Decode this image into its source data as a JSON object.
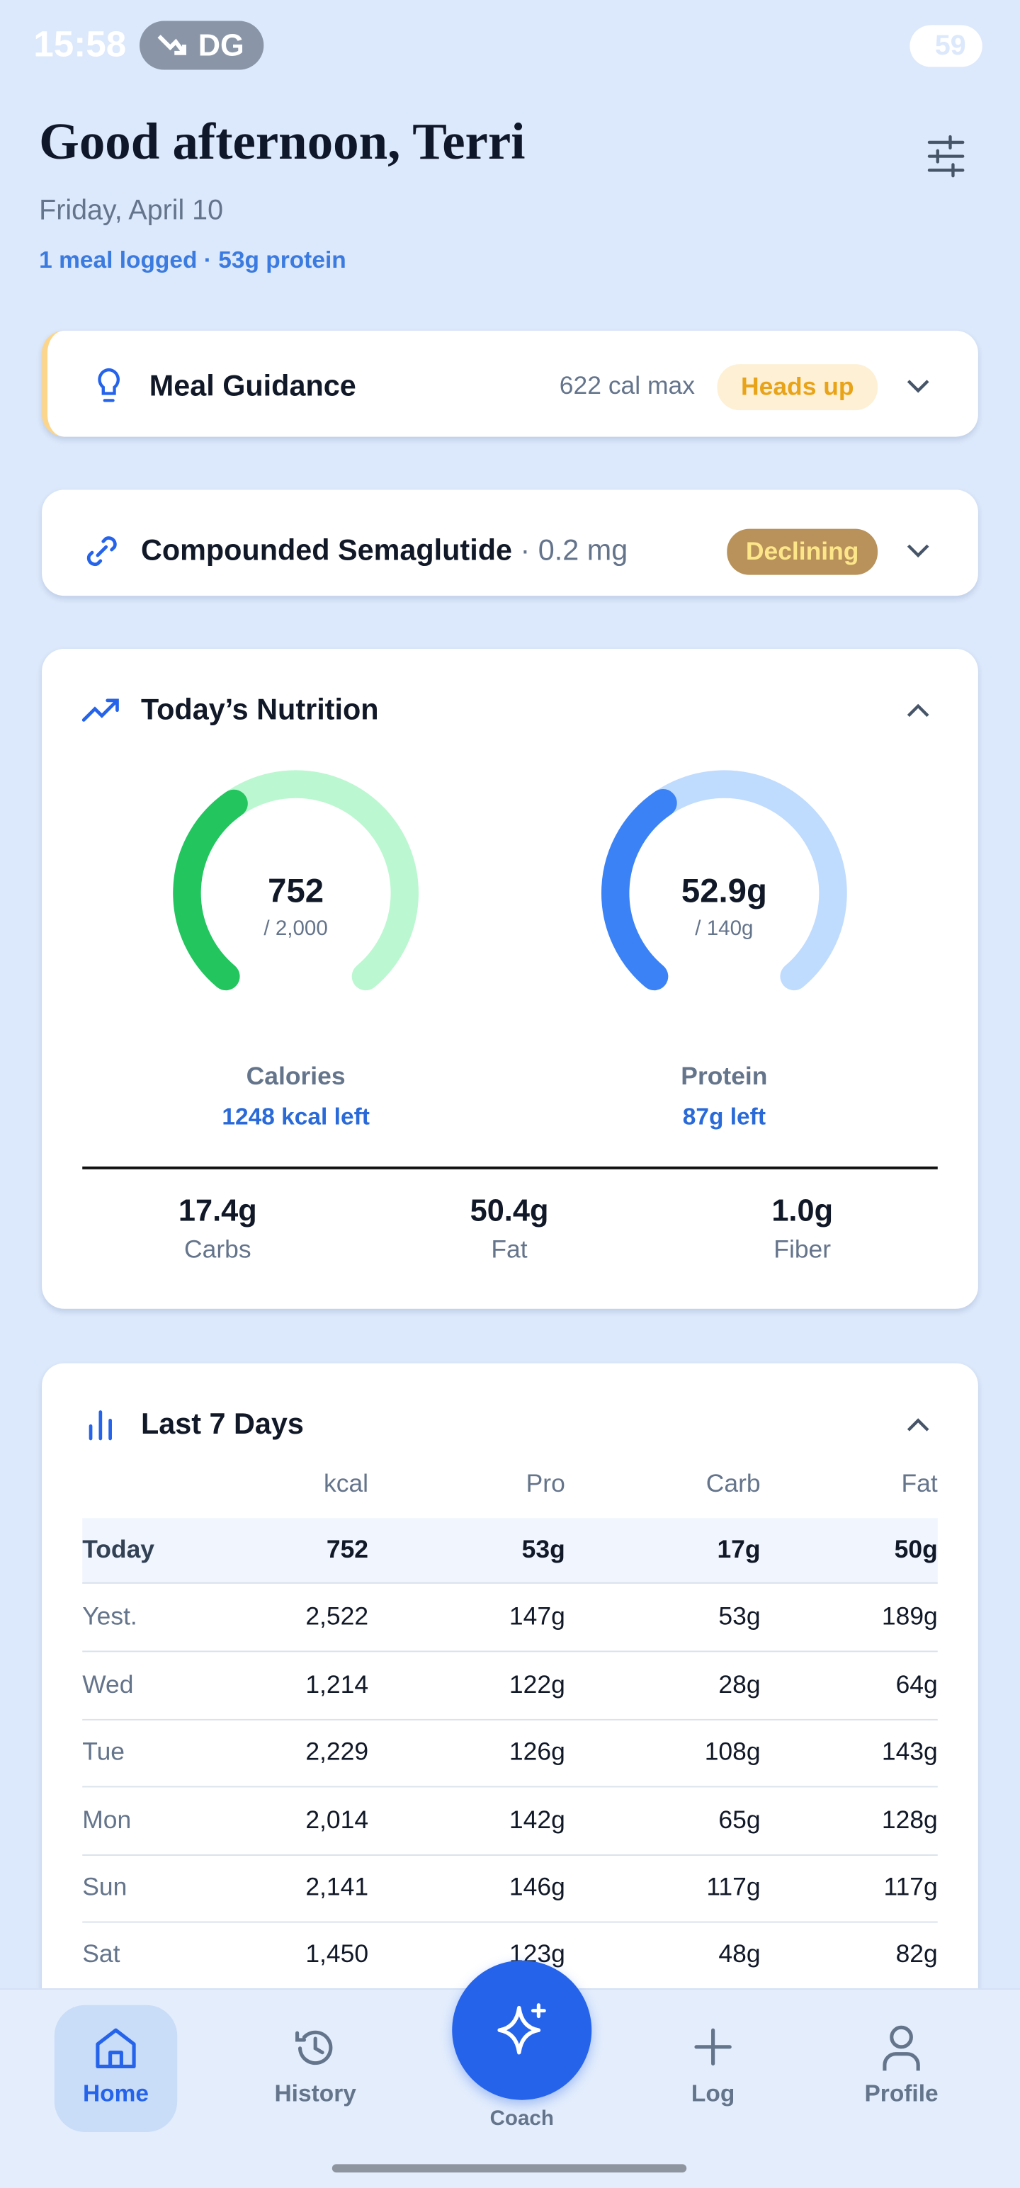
{
  "status_bar": {
    "time": "15:58",
    "carrier": "DG",
    "battery": "59"
  },
  "header": {
    "greeting": "Good afternoon, Terri",
    "date": "Friday, April 10",
    "summary": "1 meal logged · 53g protein"
  },
  "meal_guidance": {
    "title": "Meal Guidance",
    "limit": "622 cal max",
    "badge": "Heads up"
  },
  "medication": {
    "name": "Compounded Semaglutide",
    "dose": "· 0.2 mg",
    "badge": "Declining"
  },
  "nutrition": {
    "title": "Today’s Nutrition",
    "gauges": [
      {
        "value": 752,
        "value_label": "752",
        "max": 2000,
        "max_label": "/ 2,000",
        "name": "Calories",
        "remaining": "1248 kcal left",
        "color": "#22c55e",
        "track": "#bbf7d0"
      },
      {
        "value": 52.9,
        "value_label": "52.9g",
        "max": 140,
        "max_label": "/ 140g",
        "name": "Protein",
        "remaining": "87g left",
        "color": "#3b82f6",
        "track": "#bfdbfe"
      }
    ],
    "macros": [
      {
        "value": "17.4g",
        "label": "Carbs"
      },
      {
        "value": "50.4g",
        "label": "Fat"
      },
      {
        "value": "1.0g",
        "label": "Fiber"
      }
    ]
  },
  "last_7_days": {
    "title": "Last 7 Days",
    "columns": [
      "kcal",
      "Pro",
      "Carb",
      "Fat"
    ],
    "rows": [
      [
        "Today",
        "752",
        "53g",
        "17g",
        "50g"
      ],
      [
        "Yest.",
        "2,522",
        "147g",
        "53g",
        "189g"
      ],
      [
        "Wed",
        "1,214",
        "122g",
        "28g",
        "64g"
      ],
      [
        "Tue",
        "2,229",
        "126g",
        "108g",
        "143g"
      ],
      [
        "Mon",
        "2,014",
        "142g",
        "65g",
        "128g"
      ],
      [
        "Sun",
        "2,141",
        "146g",
        "117g",
        "117g"
      ],
      [
        "Sat",
        "1,450",
        "123g",
        "48g",
        "82g"
      ]
    ]
  },
  "nav": {
    "items": [
      "Home",
      "History",
      "Coach",
      "Log",
      "Profile"
    ]
  }
}
